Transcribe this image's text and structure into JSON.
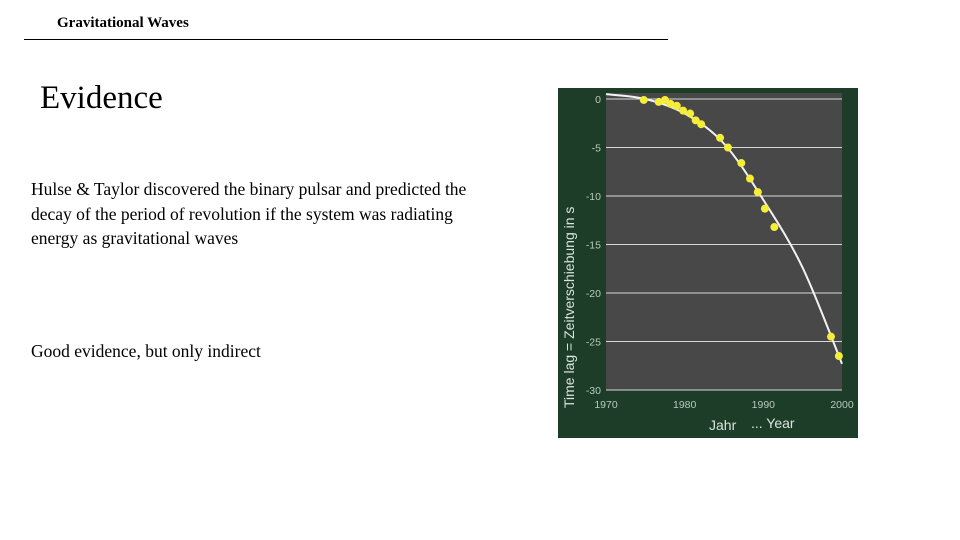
{
  "header": {
    "title": "Gravitational Waves"
  },
  "slide": {
    "title": "Evidence",
    "paragraph_1": "Hulse & Taylor discovered the binary pulsar and predicted the decay of the period of revolution if the system was radiating energy as gravitational waves",
    "paragraph_2": "Good evidence, but only indirect"
  },
  "colors": {
    "chart_frame": "#1d3d28",
    "plot_area": "#484848",
    "gridline": "#d8d8d8",
    "curve": "#f2f2f2",
    "points": "#f4ee38"
  },
  "chart_data": {
    "type": "scatter",
    "title": "",
    "xlabel_de": "Jahr",
    "xlabel_en": "... Year",
    "ylabel": "Time lag  =  Zeitverschiebung in s",
    "xlim": [
      1970,
      2000
    ],
    "ylim": [
      -30,
      0
    ],
    "x_ticks": [
      "1970",
      "1980",
      "1990",
      "2000"
    ],
    "y_ticks": [
      "0",
      "-5",
      "-10",
      "-15",
      "-20",
      "-25",
      "-30"
    ],
    "grid": true,
    "x": [
      1974.8,
      1976.7,
      1977.5,
      1978.2,
      1979.0,
      1979.8,
      1980.7,
      1981.4,
      1982.1,
      1984.5,
      1985.5,
      1987.2,
      1988.3,
      1989.3,
      1990.2,
      1991.4,
      1998.6,
      1999.6
    ],
    "y": [
      -0.1,
      -0.3,
      -0.1,
      -0.5,
      -0.7,
      -1.2,
      -1.5,
      -2.2,
      -2.6,
      -4.0,
      -5.0,
      -6.6,
      -8.2,
      -9.6,
      -11.3,
      -13.2,
      -24.5,
      -26.5
    ],
    "fit_curve": {
      "x": [
        1970,
        1975,
        1980,
        1985,
        1990,
        1995,
        2000
      ],
      "y": [
        0.5,
        0.0,
        -1.5,
        -4.6,
        -10.4,
        -17.4,
        -27.3
      ]
    }
  }
}
